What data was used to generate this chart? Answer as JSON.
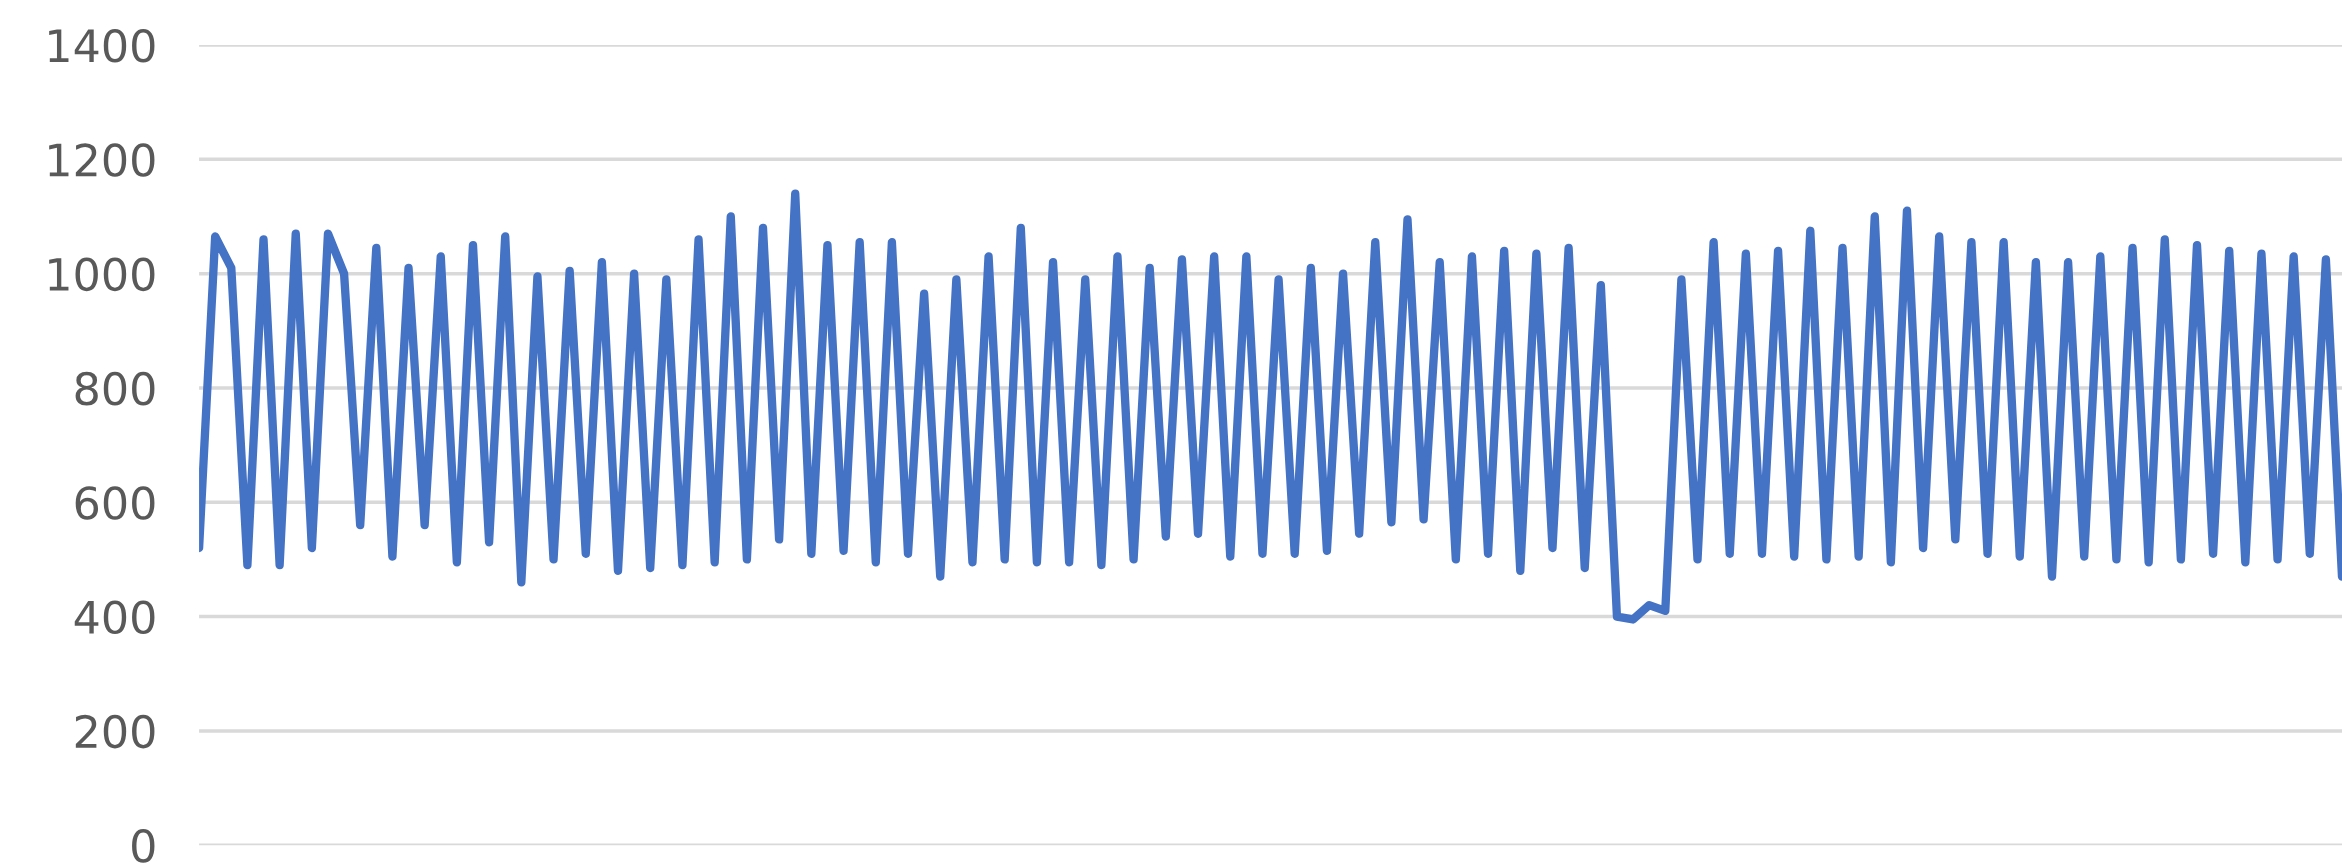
{
  "chart_data": {
    "type": "line",
    "categories": [
      null,
      null,
      null,
      null,
      null,
      null,
      null,
      null,
      null,
      null,
      null,
      null,
      null,
      null,
      null,
      null,
      null,
      null,
      null,
      null,
      null,
      null,
      null,
      null,
      null,
      null,
      null,
      null,
      null,
      null,
      null,
      null,
      null,
      null,
      null,
      null,
      null,
      null,
      null,
      null,
      null,
      null,
      null,
      null,
      null,
      null,
      null,
      null,
      null,
      null,
      null,
      null,
      null,
      null,
      null,
      null,
      null,
      null,
      null,
      null,
      null,
      null,
      null,
      null,
      null,
      null,
      null,
      null,
      null,
      null,
      null,
      null,
      null,
      null,
      null,
      null,
      null,
      null,
      null,
      null,
      null,
      null,
      null,
      null,
      null,
      null,
      null,
      null,
      null,
      null,
      null,
      null,
      null,
      null,
      null,
      null,
      null,
      null,
      null,
      null,
      null,
      null,
      null,
      null,
      null,
      null,
      null,
      null,
      null,
      null,
      null,
      null,
      null,
      null,
      null,
      null,
      null,
      null,
      null,
      null,
      null,
      null,
      null,
      null,
      null,
      null,
      null,
      null,
      null,
      null,
      null,
      null,
      null,
      null
    ],
    "series": [
      {
        "color": "#4472c4",
        "values": [
          520,
          1065,
          1010,
          490,
          1060,
          490,
          1070,
          520,
          1070,
          1000,
          560,
          1045,
          505,
          1010,
          560,
          1030,
          495,
          1050,
          530,
          1065,
          460,
          995,
          500,
          1005,
          510,
          1020,
          480,
          1000,
          485,
          990,
          490,
          1060,
          495,
          1100,
          500,
          1080,
          535,
          1140,
          510,
          1050,
          515,
          1055,
          495,
          1055,
          510,
          965,
          470,
          990,
          495,
          1030,
          500,
          1080,
          495,
          1020,
          495,
          990,
          490,
          1030,
          500,
          1010,
          540,
          1025,
          545,
          1030,
          505,
          1030,
          510,
          990,
          510,
          1010,
          515,
          1000,
          545,
          1055,
          565,
          1095,
          570,
          1020,
          500,
          1030,
          510,
          1040,
          480,
          1035,
          520,
          1045,
          485,
          980,
          400,
          395,
          420,
          410,
          990,
          500,
          1055,
          510,
          1035,
          510,
          1040,
          505,
          1075,
          500,
          1045,
          505,
          1100,
          495,
          1110,
          520,
          1065,
          535,
          1055,
          510,
          1055,
          505,
          1020,
          470,
          1020,
          505,
          1030,
          500,
          1045,
          495,
          1060,
          500,
          1050,
          510,
          1040,
          495,
          1035,
          500,
          1030,
          510,
          1025,
          470
        ]
      }
    ],
    "ylim": [
      0,
      1400
    ],
    "yticks": [
      0,
      200,
      400,
      600,
      800,
      1000,
      1200,
      1400
    ],
    "grid": "y",
    "tick_labels": "y",
    "line_style": "solid",
    "marker": "none"
  }
}
